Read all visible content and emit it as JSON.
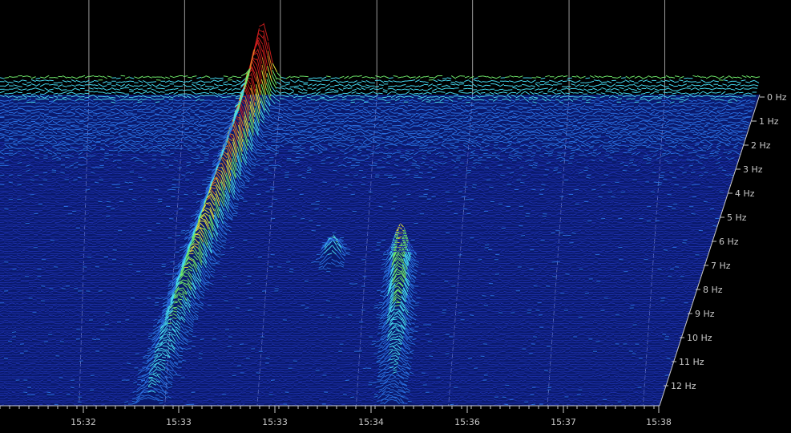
{
  "chart_data": {
    "type": "waterfall-3d",
    "frequency_labels": [
      "0 Hz",
      "1 Hz",
      "2 Hz",
      "3 Hz",
      "4 Hz",
      "5 Hz",
      "6 Hz",
      "7 Hz",
      "8 Hz",
      "9 Hz",
      "10 Hz",
      "11 Hz",
      "12 Hz"
    ],
    "time_labels": [
      "15:32",
      "15:33",
      "15:33",
      "15:34",
      "15:36",
      "15:37",
      "15:38"
    ],
    "frequency_range": [
      0,
      12.5
    ],
    "grid": true,
    "colormap": [
      "#1c2fa8",
      "#2a6fe0",
      "#45d8f0",
      "#6ee86a",
      "#e6e23a",
      "#e07a22",
      "#c41c1c"
    ],
    "events": [
      {
        "kind": "ridge",
        "freq_start": 0.0,
        "freq_end": 12.5,
        "time_top": 0.345,
        "time_bottom": 0.225,
        "peak_intensity": 1.0
      },
      {
        "kind": "ridge",
        "freq_start": 6.3,
        "freq_end": 12.6,
        "time_top": 0.565,
        "time_bottom": 0.595,
        "peak_intensity": 0.55
      },
      {
        "kind": "blob",
        "freq": 6.5,
        "time": 0.47,
        "intensity": 0.35
      }
    ]
  }
}
